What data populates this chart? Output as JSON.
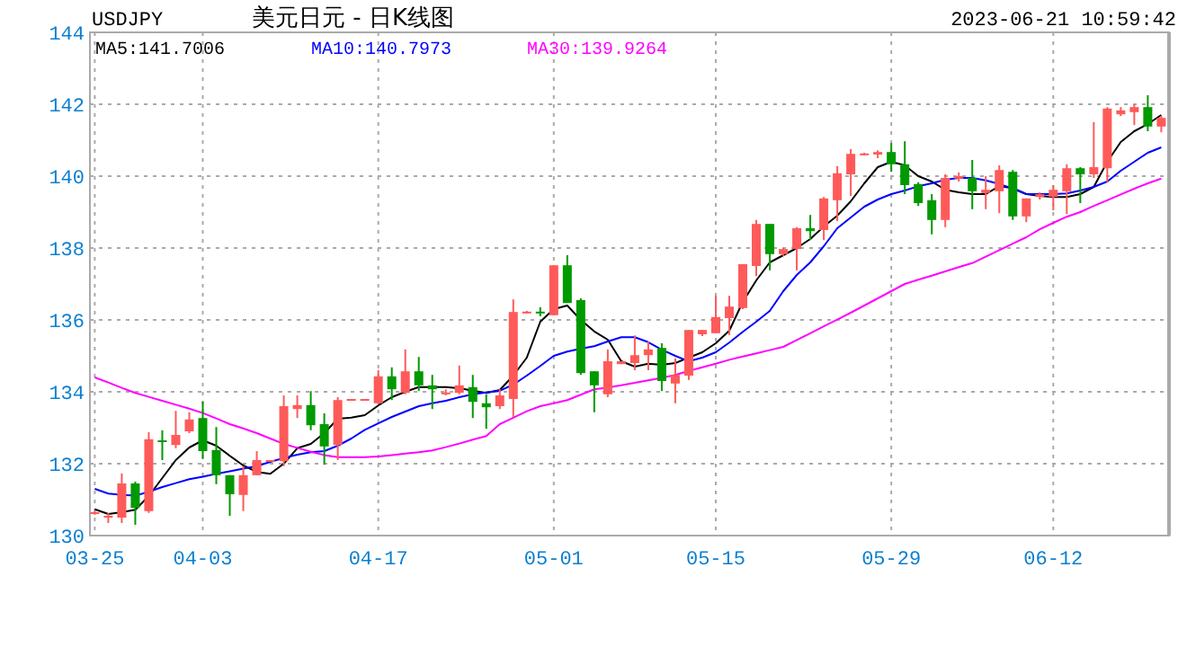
{
  "chart_data": {
    "type": "candlestick",
    "title": "美元日元 - 日K线图",
    "subtitle": "USDJPY",
    "annotations": [
      "2023-06-21 10:59:42"
    ],
    "categories": [
      "03-25",
      null,
      null,
      null,
      null,
      null,
      null,
      null,
      "04-03",
      null,
      null,
      null,
      null,
      null,
      null,
      null,
      null,
      null,
      null,
      null,
      null,
      "04-17",
      null,
      null,
      null,
      null,
      null,
      null,
      null,
      null,
      null,
      null,
      null,
      null,
      "05-01",
      null,
      null,
      null,
      null,
      null,
      null,
      null,
      null,
      null,
      null,
      null,
      "05-15",
      null,
      null,
      null,
      null,
      null,
      null,
      null,
      null,
      null,
      null,
      null,
      null,
      "05-29",
      null,
      null,
      null,
      null,
      null,
      null,
      null,
      null,
      null,
      null,
      null,
      "06-12",
      null,
      null,
      null,
      null,
      null,
      null,
      null,
      null
    ],
    "ohlc": [
      [
        130.6,
        130.68,
        130.58,
        130.65
      ],
      [
        130.5,
        130.63,
        130.35,
        130.55
      ],
      [
        130.5,
        131.73,
        130.35,
        131.45
      ],
      [
        131.45,
        131.5,
        130.3,
        130.77
      ],
      [
        130.68,
        132.88,
        130.63,
        132.68
      ],
      [
        132.65,
        132.93,
        132.1,
        132.6
      ],
      [
        132.52,
        133.47,
        132.43,
        132.8
      ],
      [
        132.9,
        133.43,
        132.85,
        133.23
      ],
      [
        133.27,
        133.73,
        132.13,
        132.35
      ],
      [
        132.38,
        133.02,
        131.43,
        131.68
      ],
      [
        131.68,
        131.68,
        130.55,
        131.15
      ],
      [
        131.13,
        131.93,
        130.68,
        131.68
      ],
      [
        131.68,
        132.35,
        131.68,
        132.1
      ],
      [
        132.05,
        132.1,
        132.05,
        132.1
      ],
      [
        132.07,
        133.9,
        131.93,
        133.6
      ],
      [
        133.52,
        133.9,
        133.27,
        133.63
      ],
      [
        133.63,
        134.02,
        132.93,
        133.07
      ],
      [
        133.1,
        133.4,
        131.97,
        132.48
      ],
      [
        132.52,
        133.85,
        132.1,
        133.77
      ],
      [
        133.75,
        133.8,
        133.75,
        133.8
      ],
      [
        133.75,
        133.8,
        133.75,
        133.8
      ],
      [
        133.68,
        134.6,
        133.68,
        134.43
      ],
      [
        134.43,
        134.68,
        133.77,
        134.07
      ],
      [
        133.97,
        135.18,
        133.93,
        134.57
      ],
      [
        134.57,
        134.97,
        134.02,
        134.18
      ],
      [
        134.18,
        134.47,
        133.52,
        134.07
      ],
      [
        133.93,
        134.07,
        133.9,
        133.98
      ],
      [
        133.97,
        134.73,
        133.93,
        134.18
      ],
      [
        134.13,
        134.47,
        133.27,
        133.72
      ],
      [
        133.68,
        133.93,
        132.97,
        133.57
      ],
      [
        133.6,
        134.07,
        133.52,
        133.9
      ],
      [
        133.8,
        136.57,
        133.3,
        136.22
      ],
      [
        136.2,
        136.25,
        136.18,
        136.23
      ],
      [
        136.23,
        136.35,
        136.1,
        136.18
      ],
      [
        136.13,
        137.52,
        136.13,
        137.52
      ],
      [
        137.52,
        137.8,
        136.47,
        136.47
      ],
      [
        136.55,
        136.6,
        134.47,
        134.52
      ],
      [
        134.57,
        134.57,
        133.43,
        134.18
      ],
      [
        133.93,
        135.18,
        133.85,
        134.85
      ],
      [
        134.77,
        134.85,
        134.77,
        134.85
      ],
      [
        134.8,
        135.57,
        134.6,
        135.02
      ],
      [
        135.02,
        135.4,
        134.6,
        135.18
      ],
      [
        135.22,
        135.35,
        134.02,
        134.3
      ],
      [
        134.23,
        134.93,
        133.68,
        134.47
      ],
      [
        134.45,
        135.72,
        134.33,
        135.72
      ],
      [
        135.6,
        135.72,
        135.55,
        135.72
      ],
      [
        135.63,
        136.67,
        135.63,
        136.08
      ],
      [
        136.05,
        136.67,
        135.58,
        136.37
      ],
      [
        136.33,
        137.55,
        136.3,
        137.55
      ],
      [
        137.5,
        138.78,
        137.22,
        138.67
      ],
      [
        138.67,
        138.67,
        137.38,
        137.83
      ],
      [
        137.83,
        138.0,
        137.78,
        137.97
      ],
      [
        137.97,
        138.58,
        137.38,
        138.55
      ],
      [
        138.55,
        138.92,
        138.22,
        138.47
      ],
      [
        138.5,
        139.42,
        138.22,
        139.38
      ],
      [
        139.33,
        140.28,
        138.75,
        140.08
      ],
      [
        140.05,
        140.75,
        139.45,
        140.62
      ],
      [
        140.6,
        140.65,
        140.58,
        140.63
      ],
      [
        140.6,
        140.72,
        140.5,
        140.67
      ],
      [
        140.67,
        140.92,
        140.12,
        140.33
      ],
      [
        140.33,
        140.97,
        139.5,
        139.75
      ],
      [
        139.78,
        139.83,
        139.17,
        139.25
      ],
      [
        139.33,
        139.5,
        138.38,
        138.78
      ],
      [
        138.78,
        140.05,
        138.58,
        139.95
      ],
      [
        139.93,
        140.1,
        139.85,
        140.0
      ],
      [
        139.95,
        140.45,
        139.08,
        139.58
      ],
      [
        139.53,
        140.0,
        139.08,
        139.62
      ],
      [
        139.58,
        140.3,
        138.97,
        140.17
      ],
      [
        140.12,
        140.17,
        138.78,
        138.88
      ],
      [
        138.88,
        139.38,
        138.72,
        139.38
      ],
      [
        139.42,
        139.55,
        139.35,
        139.5
      ],
      [
        139.42,
        139.75,
        139.05,
        139.62
      ],
      [
        139.58,
        140.33,
        138.95,
        140.22
      ],
      [
        140.22,
        140.25,
        139.25,
        140.05
      ],
      [
        140.05,
        141.5,
        139.95,
        140.25
      ],
      [
        140.22,
        141.92,
        139.83,
        141.88
      ],
      [
        141.72,
        141.92,
        141.67,
        141.83
      ],
      [
        141.78,
        142.0,
        141.42,
        141.92
      ],
      [
        141.92,
        142.25,
        141.25,
        141.38
      ],
      [
        141.38,
        141.67,
        141.22,
        141.62
      ]
    ],
    "colors": [
      "#ff5a5a",
      "#ff5a5a",
      "#ff5a5a",
      "#009900",
      "#ff5a5a",
      "#009900",
      "#ff5a5a",
      "#ff5a5a",
      "#009900",
      "#009900",
      "#009900",
      "#ff5a5a",
      "#ff5a5a",
      "#ff5a5a",
      "#ff5a5a",
      "#ff5a5a",
      "#009900",
      "#009900",
      "#ff5a5a",
      "#ff5a5a",
      "#ff5a5a",
      "#ff5a5a",
      "#009900",
      "#ff5a5a",
      "#009900",
      "#009900",
      "#ff5a5a",
      "#ff5a5a",
      "#009900",
      "#009900",
      "#ff5a5a",
      "#ff5a5a",
      "#ff5a5a",
      "#009900",
      "#ff5a5a",
      "#009900",
      "#009900",
      "#009900",
      "#ff5a5a",
      "#ff5a5a",
      "#ff5a5a",
      "#ff5a5a",
      "#009900",
      "#ff5a5a",
      "#ff5a5a",
      "#ff5a5a",
      "#ff5a5a",
      "#ff5a5a",
      "#ff5a5a",
      "#ff5a5a",
      "#009900",
      "#ff5a5a",
      "#ff5a5a",
      "#009900",
      "#ff5a5a",
      "#ff5a5a",
      "#ff5a5a",
      "#ff5a5a",
      "#ff5a5a",
      "#009900",
      "#009900",
      "#009900",
      "#009900",
      "#ff5a5a",
      "#ff5a5a",
      "#009900",
      "#ff5a5a",
      "#ff5a5a",
      "#009900",
      "#ff5a5a",
      "#ff5a5a",
      "#ff5a5a",
      "#ff5a5a",
      "#009900",
      "#ff5a5a",
      "#ff5a5a",
      "#ff5a5a",
      "#ff5a5a",
      "#009900",
      "#ff5a5a"
    ],
    "series": [
      {
        "name": "MA5:141.7006",
        "type": "line",
        "color": "#000000",
        "values": [
          130.73,
          130.6,
          130.65,
          130.72,
          131.1,
          131.6,
          132.1,
          132.45,
          132.65,
          132.5,
          132.22,
          131.95,
          131.77,
          131.72,
          132.0,
          132.43,
          132.55,
          132.85,
          133.25,
          133.28,
          133.35,
          133.62,
          133.85,
          134.0,
          134.13,
          134.13,
          134.13,
          134.1,
          134.03,
          133.97,
          134.05,
          134.45,
          134.95,
          135.95,
          136.3,
          136.4,
          136.0,
          135.68,
          135.45,
          134.85,
          134.7,
          134.78,
          134.75,
          134.8,
          134.95,
          135.1,
          135.35,
          135.7,
          136.5,
          137.1,
          137.6,
          137.8,
          138.0,
          138.25,
          138.6,
          138.9,
          139.3,
          139.8,
          140.25,
          140.4,
          140.3,
          140.0,
          139.85,
          139.62,
          139.55,
          139.5,
          139.5,
          139.72,
          139.67,
          139.5,
          139.45,
          139.42,
          139.42,
          139.5,
          139.7,
          140.4,
          140.95,
          141.25,
          141.45,
          141.7
        ]
      },
      {
        "name": "MA10:140.7973",
        "type": "line",
        "color": "#0000ff",
        "values": [
          131.3,
          131.17,
          131.13,
          131.11,
          131.22,
          131.35,
          131.46,
          131.57,
          131.64,
          131.72,
          131.79,
          131.86,
          131.93,
          132.05,
          132.16,
          132.25,
          132.32,
          132.35,
          132.5,
          132.7,
          132.94,
          133.12,
          133.3,
          133.45,
          133.6,
          133.68,
          133.75,
          133.85,
          133.93,
          133.98,
          134.03,
          134.2,
          134.45,
          134.72,
          135.0,
          135.12,
          135.2,
          135.27,
          135.4,
          135.52,
          135.52,
          135.38,
          135.17,
          135.0,
          134.85,
          134.95,
          135.1,
          135.37,
          135.67,
          135.95,
          136.25,
          136.8,
          137.25,
          137.6,
          138.05,
          138.55,
          138.85,
          139.15,
          139.35,
          139.5,
          139.6,
          139.72,
          139.8,
          139.9,
          139.95,
          139.95,
          139.88,
          139.78,
          139.65,
          139.5,
          139.5,
          139.5,
          139.52,
          139.6,
          139.7,
          139.85,
          140.15,
          140.4,
          140.65,
          140.8
        ]
      },
      {
        "name": "MA30:139.9264",
        "type": "line",
        "color": "#ff00ff",
        "values": [
          134.4,
          134.26,
          134.11,
          133.97,
          133.86,
          133.75,
          133.64,
          133.53,
          133.41,
          133.26,
          133.1,
          132.98,
          132.85,
          132.7,
          132.55,
          132.44,
          132.33,
          132.24,
          132.18,
          132.18,
          132.18,
          132.2,
          132.24,
          132.28,
          132.32,
          132.37,
          132.46,
          132.56,
          132.67,
          132.77,
          133.1,
          133.28,
          133.46,
          133.6,
          133.68,
          133.77,
          133.92,
          134.07,
          134.12,
          134.18,
          134.25,
          134.32,
          134.39,
          134.47,
          134.58,
          134.68,
          134.78,
          134.89,
          134.98,
          135.07,
          135.16,
          135.25,
          135.44,
          135.63,
          135.82,
          136.01,
          136.2,
          136.4,
          136.6,
          136.8,
          137.0,
          137.12,
          137.23,
          137.35,
          137.47,
          137.58,
          137.76,
          137.94,
          138.12,
          138.3,
          138.52,
          138.7,
          138.87,
          139.0,
          139.17,
          139.33,
          139.49,
          139.65,
          139.8,
          139.93
        ]
      }
    ],
    "ylim": [
      130,
      144
    ],
    "yticks": [
      130,
      132,
      134,
      136,
      138,
      140,
      142,
      144
    ],
    "grid": true,
    "legend": "top left"
  }
}
